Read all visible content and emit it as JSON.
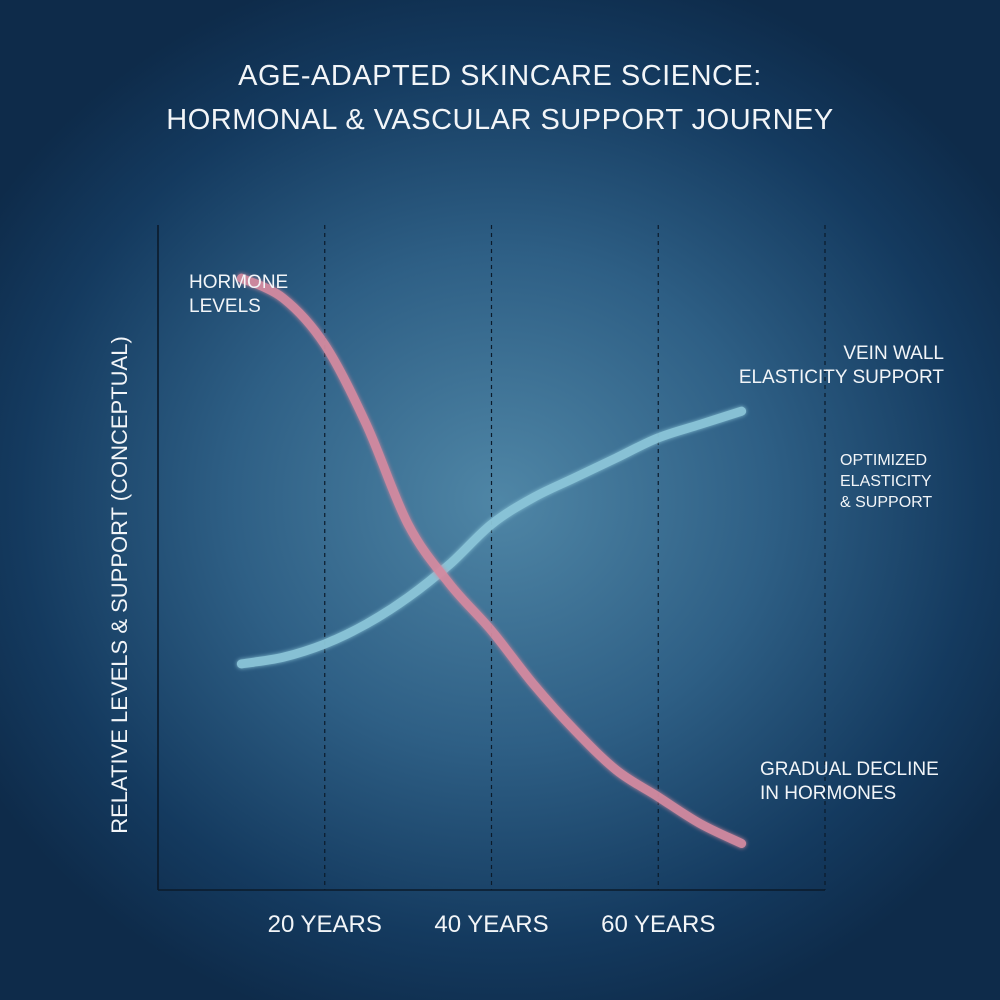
{
  "title_lines": [
    "AGE-ADAPTED SKINCARE SCIENCE:",
    "HORMONAL & VASCULAR SUPPORT JOURNEY"
  ],
  "chart_data": {
    "type": "line",
    "title": "AGE-ADAPTED SKINCARE SCIENCE: HORMONAL & VASCULAR SUPPORT JOURNEY",
    "ylabel": "RELATIVE LEVELS & SUPPORT (CONCEPTUAL)",
    "xlabel": "",
    "x_tick_labels": [
      "20 YEARS",
      "40 YEARS",
      "60 YEARS"
    ],
    "grid": "vertical dashed",
    "series": [
      {
        "name": "HORMONE LEVELS",
        "color": "#d48aa0",
        "x": [
          10,
          15,
          20,
          25,
          30,
          35,
          40,
          45,
          50,
          55,
          60,
          65,
          70
        ],
        "y": [
          0.92,
          0.89,
          0.82,
          0.7,
          0.55,
          0.46,
          0.39,
          0.31,
          0.24,
          0.18,
          0.14,
          0.1,
          0.07
        ]
      },
      {
        "name": "VEIN WALL ELASTICITY SUPPORT",
        "color": "#8cc6d9",
        "x": [
          10,
          15,
          20,
          25,
          30,
          35,
          40,
          45,
          50,
          55,
          60,
          65,
          70
        ],
        "y": [
          0.34,
          0.35,
          0.37,
          0.4,
          0.44,
          0.49,
          0.55,
          0.59,
          0.62,
          0.65,
          0.68,
          0.7,
          0.72
        ]
      }
    ],
    "annotations": [
      {
        "lines": [
          "HORMONE",
          "LEVELS"
        ]
      },
      {
        "lines": [
          "VEIN WALL",
          "ELASTICITY SUPPORT"
        ]
      },
      {
        "lines": [
          "OPTIMIZED",
          "ELASTICITY",
          "& SUPPORT"
        ]
      },
      {
        "lines": [
          "GRADUAL DECLINE",
          "IN HORMONES"
        ]
      }
    ]
  }
}
